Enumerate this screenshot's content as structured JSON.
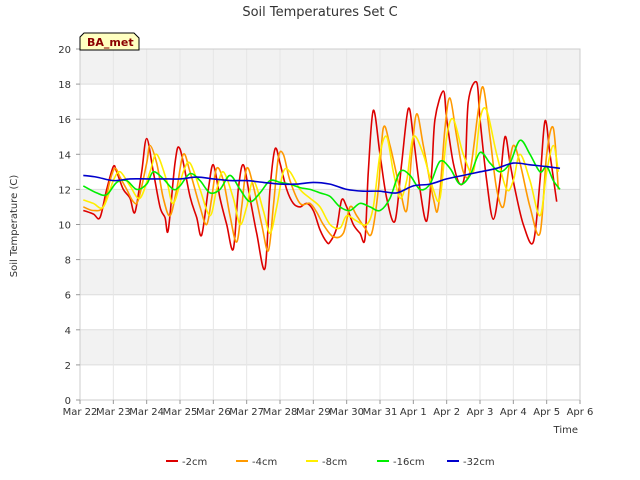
{
  "chart_data": {
    "type": "line",
    "title": "Soil Temperatures Set C",
    "xlabel": "Time",
    "ylabel": "Soil Temperature (C)",
    "badge": "BA_met",
    "ylim": [
      0,
      20
    ],
    "yticks": [
      0,
      2,
      4,
      6,
      8,
      10,
      12,
      14,
      16,
      18,
      20
    ],
    "xlim": [
      0,
      15
    ],
    "xticks": [
      {
        "x": 0,
        "label": "Mar 22"
      },
      {
        "x": 1,
        "label": "Mar 23"
      },
      {
        "x": 2,
        "label": "Mar 24"
      },
      {
        "x": 3,
        "label": "Mar 25"
      },
      {
        "x": 4,
        "label": "Mar 26"
      },
      {
        "x": 5,
        "label": "Mar 27"
      },
      {
        "x": 6,
        "label": "Mar 28"
      },
      {
        "x": 7,
        "label": "Mar 29"
      },
      {
        "x": 8,
        "label": "Mar 30"
      },
      {
        "x": 9,
        "label": "Mar 31"
      },
      {
        "x": 10,
        "label": "Apr 1"
      },
      {
        "x": 11,
        "label": "Apr 2"
      },
      {
        "x": 12,
        "label": "Apr 3"
      },
      {
        "x": 13,
        "label": "Apr 4"
      },
      {
        "x": 14,
        "label": "Apr 5"
      },
      {
        "x": 15,
        "label": "Apr 6"
      }
    ],
    "grid": true,
    "legend_position": "bottom",
    "series": [
      {
        "name": "-2cm",
        "color": "#dd0000",
        "x": [
          0.1,
          0.4,
          0.6,
          0.8,
          1.0,
          1.1,
          1.3,
          1.5,
          1.65,
          1.85,
          2.0,
          2.2,
          2.4,
          2.55,
          2.65,
          2.85,
          3.0,
          3.3,
          3.5,
          3.65,
          3.85,
          4.0,
          4.2,
          4.4,
          4.6,
          4.75,
          4.9,
          5.1,
          5.3,
          5.55,
          5.7,
          5.85,
          6.0,
          6.2,
          6.4,
          6.6,
          6.8,
          7.0,
          7.2,
          7.4,
          7.5,
          7.7,
          7.85,
          8.0,
          8.2,
          8.4,
          8.55,
          8.65,
          8.8,
          9.0,
          9.2,
          9.45,
          9.65,
          9.85,
          10.0,
          10.2,
          10.4,
          10.55,
          10.65,
          10.9,
          11.0,
          11.2,
          11.4,
          11.55,
          11.65,
          11.9,
          12.0,
          12.2,
          12.4,
          12.6,
          12.75,
          12.9,
          13.05,
          13.3,
          13.6,
          13.8,
          13.95,
          14.1,
          14.3
        ],
        "y": [
          10.8,
          10.6,
          10.4,
          12.0,
          13.3,
          13.0,
          12.0,
          11.5,
          10.7,
          13.0,
          14.9,
          13.0,
          11.0,
          10.4,
          9.7,
          13.5,
          14.3,
          11.6,
          10.4,
          9.4,
          12.0,
          13.4,
          11.5,
          10.0,
          8.6,
          12.0,
          13.4,
          11.5,
          9.5,
          7.5,
          12.0,
          14.3,
          13.5,
          12.0,
          11.2,
          11.0,
          11.2,
          10.8,
          9.7,
          9.0,
          9.0,
          9.8,
          11.4,
          11.0,
          10.0,
          9.5,
          9.2,
          13.0,
          16.5,
          14.0,
          11.5,
          10.2,
          13.5,
          16.6,
          15.0,
          12.0,
          10.2,
          13.0,
          16.0,
          17.6,
          16.0,
          13.5,
          12.3,
          13.0,
          17.0,
          18.1,
          16.0,
          12.5,
          10.3,
          12.5,
          15.0,
          13.5,
          12.0,
          10.0,
          9.0,
          12.5,
          15.9,
          14.0,
          11.3
        ]
      },
      {
        "name": "-4cm",
        "color": "#ff9900",
        "x": [
          0.1,
          0.4,
          0.7,
          0.9,
          1.05,
          1.2,
          1.4,
          1.6,
          1.75,
          2.0,
          2.1,
          2.3,
          2.5,
          2.7,
          2.9,
          3.1,
          3.3,
          3.6,
          3.8,
          3.95,
          4.1,
          4.3,
          4.5,
          4.7,
          4.85,
          5.0,
          5.2,
          5.45,
          5.65,
          5.8,
          5.95,
          6.1,
          6.3,
          6.6,
          6.9,
          7.1,
          7.3,
          7.6,
          7.9,
          8.1,
          8.3,
          8.55,
          8.75,
          8.95,
          9.1,
          9.3,
          9.6,
          9.8,
          9.95,
          10.1,
          10.3,
          10.6,
          10.75,
          10.95,
          11.1,
          11.3,
          11.5,
          11.7,
          11.95,
          12.1,
          12.3,
          12.5,
          12.7,
          12.85,
          13.0,
          13.2,
          13.5,
          13.8,
          14.0,
          14.2,
          14.35
        ],
        "y": [
          11.0,
          10.8,
          11.0,
          12.5,
          13.2,
          12.7,
          12.0,
          11.3,
          11.4,
          13.5,
          14.5,
          13.5,
          11.5,
          10.5,
          12.0,
          14.0,
          13.0,
          11.0,
          10.0,
          11.5,
          13.2,
          12.5,
          10.5,
          9.0,
          11.0,
          13.2,
          12.2,
          10.0,
          8.5,
          11.0,
          13.8,
          14.0,
          12.5,
          11.2,
          11.2,
          10.7,
          10.0,
          9.3,
          9.5,
          11.0,
          10.5,
          9.8,
          9.5,
          12.0,
          15.5,
          14.5,
          12.0,
          10.8,
          14.0,
          16.3,
          14.5,
          11.5,
          11.0,
          15.5,
          17.2,
          15.0,
          13.0,
          13.0,
          16.5,
          17.8,
          15.0,
          12.0,
          11.0,
          13.0,
          14.5,
          13.5,
          11.0,
          9.5,
          14.0,
          15.5,
          12.0
        ]
      },
      {
        "name": "-8cm",
        "color": "#ffee00",
        "x": [
          0.1,
          0.4,
          0.7,
          1.0,
          1.2,
          1.5,
          1.8,
          2.1,
          2.3,
          2.6,
          2.8,
          3.1,
          3.3,
          3.6,
          3.9,
          4.1,
          4.3,
          4.6,
          4.8,
          5.0,
          5.2,
          5.5,
          5.7,
          5.9,
          6.1,
          6.3,
          6.6,
          6.9,
          7.2,
          7.5,
          7.8,
          8.0,
          8.3,
          8.6,
          8.8,
          9.0,
          9.2,
          9.4,
          9.6,
          9.8,
          10.0,
          10.3,
          10.6,
          10.8,
          11.0,
          11.2,
          11.5,
          11.8,
          12.0,
          12.2,
          12.5,
          12.8,
          13.0,
          13.2,
          13.5,
          13.8,
          14.0,
          14.2,
          14.35
        ],
        "y": [
          11.4,
          11.2,
          11.0,
          12.5,
          13.0,
          12.2,
          11.5,
          13.0,
          14.0,
          12.5,
          11.2,
          13.0,
          13.5,
          12.0,
          10.5,
          12.0,
          13.0,
          11.5,
          10.0,
          11.0,
          12.5,
          10.8,
          9.5,
          11.0,
          13.0,
          13.0,
          12.0,
          11.5,
          11.0,
          10.0,
          9.8,
          10.5,
          10.2,
          10.0,
          11.0,
          14.0,
          15.0,
          13.0,
          11.5,
          12.5,
          15.0,
          14.0,
          12.0,
          11.5,
          15.0,
          16.0,
          14.0,
          13.0,
          16.0,
          16.5,
          14.0,
          12.0,
          12.5,
          14.0,
          12.5,
          10.5,
          13.0,
          14.5,
          13.0
        ]
      },
      {
        "name": "-16cm",
        "color": "#00ee00",
        "x": [
          0.1,
          0.5,
          0.8,
          1.1,
          1.4,
          1.7,
          2.0,
          2.2,
          2.5,
          2.8,
          3.0,
          3.3,
          3.6,
          3.9,
          4.2,
          4.5,
          4.8,
          5.1,
          5.4,
          5.7,
          6.0,
          6.3,
          6.6,
          6.9,
          7.2,
          7.5,
          7.8,
          8.1,
          8.4,
          8.7,
          9.0,
          9.3,
          9.6,
          9.9,
          10.2,
          10.5,
          10.8,
          11.1,
          11.4,
          11.7,
          12.0,
          12.3,
          12.6,
          12.9,
          13.2,
          13.5,
          13.8,
          14.0,
          14.2,
          14.4
        ],
        "y": [
          12.2,
          11.8,
          11.7,
          12.4,
          12.5,
          12.0,
          12.3,
          13.0,
          12.6,
          12.0,
          12.2,
          12.9,
          12.5,
          11.8,
          12.0,
          12.8,
          12.0,
          11.3,
          11.8,
          12.5,
          12.4,
          12.3,
          12.1,
          12.0,
          11.8,
          11.6,
          11.0,
          10.8,
          11.2,
          11.0,
          10.8,
          11.5,
          13.0,
          12.8,
          12.0,
          12.3,
          13.6,
          13.2,
          12.3,
          12.8,
          14.1,
          13.5,
          13.0,
          13.5,
          14.8,
          14.0,
          13.0,
          13.3,
          12.5,
          12.0
        ]
      },
      {
        "name": "-32cm",
        "color": "#0000cc",
        "x": [
          0.1,
          0.5,
          1.0,
          1.5,
          2.0,
          2.5,
          3.0,
          3.5,
          4.0,
          4.5,
          5.0,
          5.5,
          6.0,
          6.5,
          7.0,
          7.5,
          8.0,
          8.5,
          9.0,
          9.5,
          10.0,
          10.5,
          11.0,
          11.5,
          12.0,
          12.5,
          13.0,
          13.5,
          14.0,
          14.4
        ],
        "y": [
          12.8,
          12.7,
          12.5,
          12.6,
          12.6,
          12.6,
          12.6,
          12.7,
          12.6,
          12.5,
          12.5,
          12.4,
          12.3,
          12.3,
          12.4,
          12.3,
          12.0,
          11.9,
          11.9,
          11.8,
          12.2,
          12.3,
          12.6,
          12.8,
          13.0,
          13.2,
          13.5,
          13.4,
          13.3,
          13.2
        ]
      }
    ]
  }
}
